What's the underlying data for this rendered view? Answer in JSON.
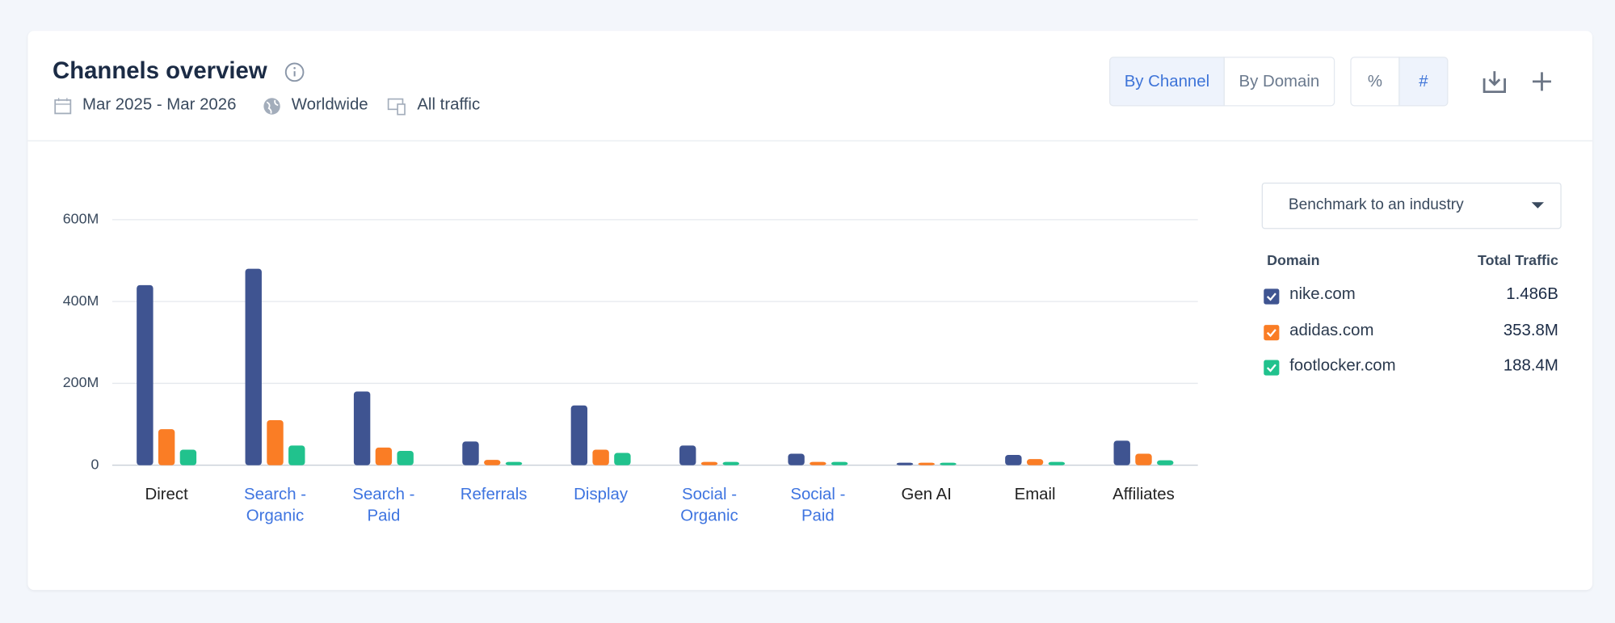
{
  "header": {
    "title": "Channels overview",
    "date_range": "Mar 2025 - Mar 2026",
    "region": "Worldwide",
    "traffic": "All traffic"
  },
  "controls": {
    "view_buttons": [
      "By Channel",
      "By Domain"
    ],
    "unit_buttons": [
      "%",
      "#"
    ],
    "benchmark": "Benchmark to an industry"
  },
  "legend_table": {
    "columns": [
      "Domain",
      "Total Traffic"
    ]
  },
  "chart_data": {
    "type": "bar",
    "categories": [
      "Direct",
      "Search - Organic",
      "Search - Paid",
      "Referrals",
      "Display",
      "Social - Organic",
      "Social - Paid",
      "Gen AI",
      "Email",
      "Affiliates"
    ],
    "category_colors": [
      "#222222",
      "#3e74e0",
      "#3e74e0",
      "#3e74e0",
      "#3e74e0",
      "#3e74e0",
      "#3e74e0",
      "#222222",
      "#222222",
      "#222222"
    ],
    "series": [
      {
        "name": "nike.com",
        "total": "1.486B",
        "color": "#3f5491",
        "values": [
          440,
          480,
          180,
          58,
          146,
          48,
          28,
          6,
          25,
          60
        ]
      },
      {
        "name": "adidas.com",
        "total": "353.8M",
        "color": "#fa7d25",
        "values": [
          88,
          110,
          43,
          13,
          38,
          8,
          8,
          6,
          15,
          28
        ]
      },
      {
        "name": "footlocker.com",
        "total": "188.4M",
        "color": "#21c28d",
        "values": [
          38,
          48,
          35,
          8,
          30,
          8,
          8,
          6,
          8,
          12
        ]
      }
    ],
    "ylim": [
      0,
      600
    ],
    "yticks": [
      0,
      {
        "value": 200,
        "label": "200M"
      },
      {
        "value": 400,
        "label": "400M"
      },
      {
        "value": 600,
        "label": "600M"
      }
    ],
    "grid": true
  }
}
